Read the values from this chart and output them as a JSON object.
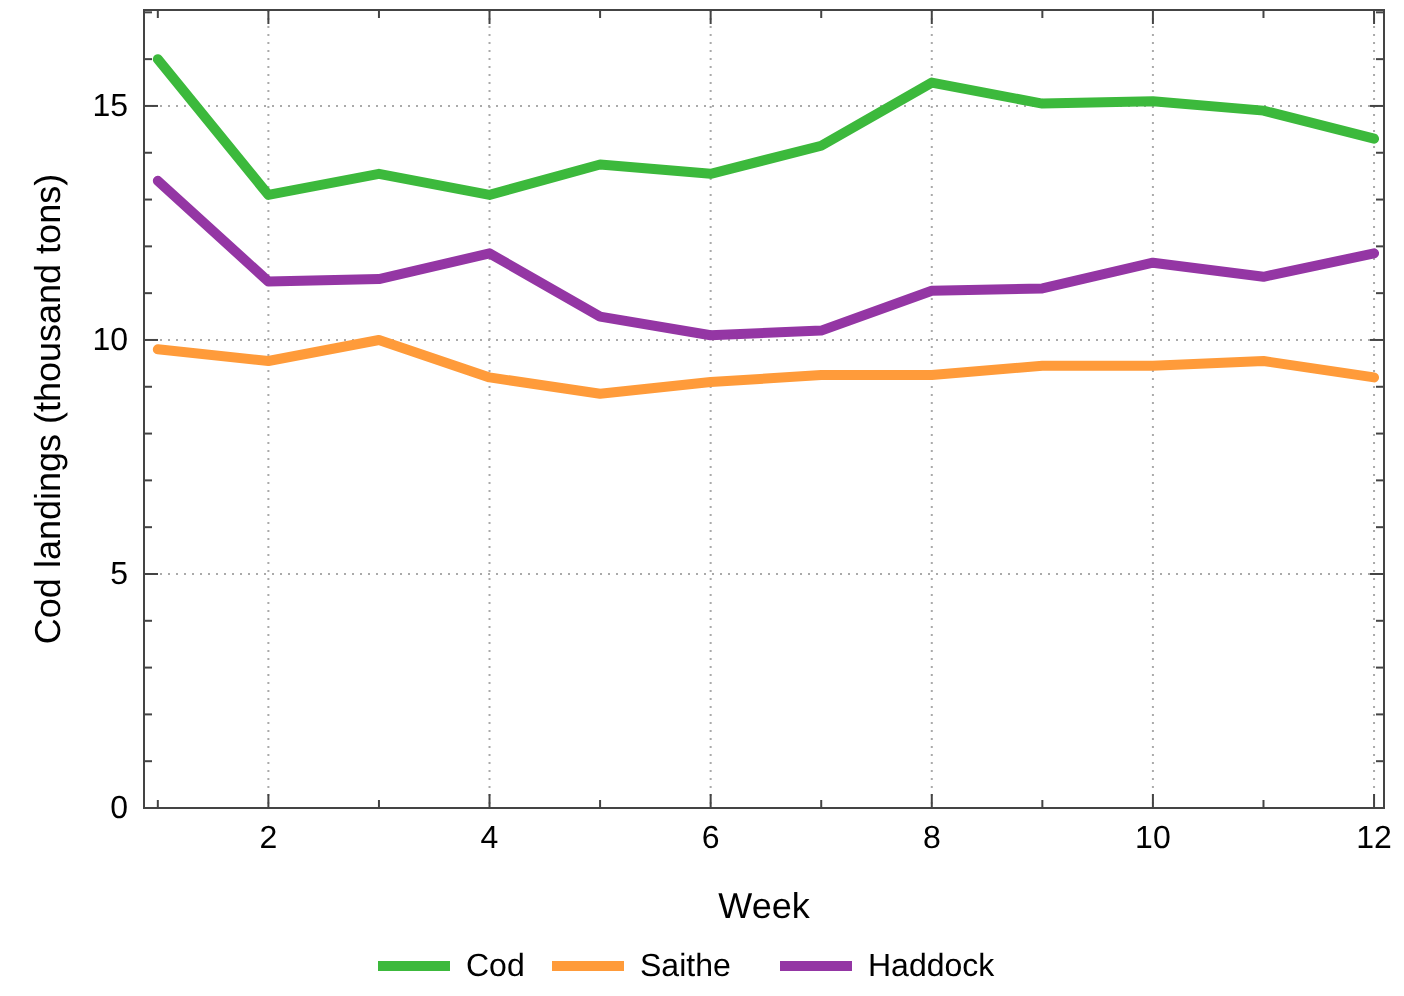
{
  "chart_data": {
    "type": "line",
    "xlabel": "Week",
    "ylabel": "Cod landings (thousand tons)",
    "x": [
      1,
      2,
      3,
      4,
      5,
      6,
      7,
      8,
      9,
      10,
      11,
      12
    ],
    "series": [
      {
        "name": "Cod",
        "color": "#3cb93c",
        "values": [
          16.0,
          13.1,
          13.55,
          13.1,
          13.75,
          13.55,
          14.15,
          15.5,
          15.05,
          15.1,
          14.9,
          14.3
        ]
      },
      {
        "name": "Saithe",
        "color": "#ff9b3a",
        "values": [
          9.8,
          9.55,
          10.0,
          9.2,
          8.85,
          9.1,
          9.25,
          9.25,
          9.45,
          9.45,
          9.55,
          9.2
        ]
      },
      {
        "name": "Haddock",
        "color": "#9436a4",
        "values": [
          13.4,
          11.25,
          11.3,
          11.85,
          10.5,
          10.1,
          10.2,
          11.05,
          11.1,
          11.65,
          11.35,
          11.85
        ]
      }
    ],
    "xlim": [
      0.875,
      12.09
    ],
    "ylim": [
      0,
      17.05
    ],
    "xticks": [
      {
        "value": 1,
        "label": null
      },
      2,
      {
        "value": 3,
        "label": null
      },
      4,
      {
        "value": 5,
        "label": null
      },
      6,
      {
        "value": 7,
        "label": null
      },
      8,
      {
        "value": 9,
        "label": null
      },
      10,
      {
        "value": 11,
        "label": null
      },
      12
    ],
    "yticks": [
      0,
      {
        "value": 1,
        "label": null
      },
      {
        "value": 2,
        "label": null
      },
      {
        "value": 3,
        "label": null
      },
      {
        "value": 4,
        "label": null
      },
      5,
      {
        "value": 6,
        "label": null
      },
      {
        "value": 7,
        "label": null
      },
      {
        "value": 8,
        "label": null
      },
      {
        "value": 9,
        "label": null
      },
      10,
      {
        "value": 11,
        "label": null
      },
      {
        "value": 12,
        "label": null
      },
      {
        "value": 13,
        "label": null
      },
      {
        "value": 14,
        "label": null
      },
      15,
      {
        "value": 16,
        "label": null
      },
      {
        "value": 17,
        "label": null
      }
    ],
    "grid": true,
    "legend": "bottom",
    "marker": "none",
    "line_style": "solid"
  }
}
